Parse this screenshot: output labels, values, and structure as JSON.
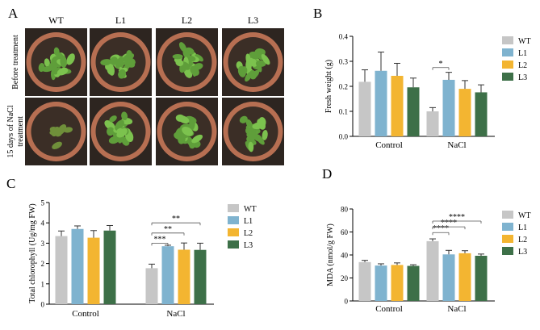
{
  "colors": {
    "WT": "#c6c6c6",
    "L1": "#7fb3cf",
    "L2": "#f3b531",
    "L3": "#3d7048",
    "axis": "#000000",
    "pot_rim": "#b76f52",
    "soil": "#3b2e26",
    "leaf": "#5f9e3a"
  },
  "panel_a": {
    "letter": "A",
    "columns": [
      "WT",
      "L1",
      "L2",
      "L3"
    ],
    "rows": [
      "Before treatment",
      "15 days of NaCl treatment"
    ],
    "row_label_lines": [
      [
        "Before treatment"
      ],
      [
        "15 days of NaCl",
        "treatment"
      ]
    ]
  },
  "chart_data": [
    {
      "panel": "B",
      "type": "bar",
      "ylabel": "Fresh weight (g)",
      "xlabel": "",
      "ylim": [
        0,
        0.4
      ],
      "yticks": [
        "0.0",
        "0.1",
        "0.2",
        "0.3",
        "0.4"
      ],
      "categories": [
        "Control",
        "NaCl"
      ],
      "legend_position": "right",
      "series": [
        {
          "name": "WT",
          "values": [
            0.218,
            0.1
          ],
          "errors": [
            0.048,
            0.015
          ]
        },
        {
          "name": "L1",
          "values": [
            0.262,
            0.226
          ],
          "errors": [
            0.075,
            0.03
          ]
        },
        {
          "name": "L2",
          "values": [
            0.242,
            0.19
          ],
          "errors": [
            0.05,
            0.033
          ]
        },
        {
          "name": "L3",
          "values": [
            0.196,
            0.176
          ],
          "errors": [
            0.037,
            0.03
          ]
        }
      ],
      "significance": [
        {
          "category": 1,
          "from": "WT",
          "to": "L1",
          "label": "*",
          "y": 0.275
        }
      ]
    },
    {
      "panel": "C",
      "type": "bar",
      "ylabel": "Total chlorophyll (Ug/mg FW)",
      "xlabel": "",
      "ylim": [
        0,
        5
      ],
      "yticks": [
        "0",
        "1",
        "2",
        "3",
        "4",
        "5"
      ],
      "categories": [
        "Control",
        "NaCl"
      ],
      "legend_position": "right",
      "series": [
        {
          "name": "WT",
          "values": [
            3.35,
            1.77
          ],
          "errors": [
            0.25,
            0.2
          ]
        },
        {
          "name": "L1",
          "values": [
            3.7,
            2.85
          ],
          "errors": [
            0.15,
            0.05
          ]
        },
        {
          "name": "L2",
          "values": [
            3.27,
            2.68
          ],
          "errors": [
            0.35,
            0.33
          ]
        },
        {
          "name": "L3",
          "values": [
            3.62,
            2.67
          ],
          "errors": [
            0.25,
            0.33
          ]
        }
      ],
      "significance": [
        {
          "category": 1,
          "from": "WT",
          "to": "L1",
          "label": "***",
          "y": 3.0
        },
        {
          "category": 1,
          "from": "WT",
          "to": "L2",
          "label": "**",
          "y": 3.5
        },
        {
          "category": 1,
          "from": "WT",
          "to": "L3",
          "label": "**",
          "y": 4.0
        }
      ]
    },
    {
      "panel": "D",
      "type": "bar",
      "ylabel": "MDA (nmol/g FW)",
      "xlabel": "",
      "ylim": [
        0,
        80
      ],
      "yticks": [
        "0",
        "20",
        "40",
        "60",
        "80"
      ],
      "categories": [
        "Control",
        "NaCl"
      ],
      "legend_position": "right",
      "series": [
        {
          "name": "WT",
          "values": [
            33.8,
            52.0
          ],
          "errors": [
            1.5,
            2.0
          ]
        },
        {
          "name": "L1",
          "values": [
            30.8,
            40.5
          ],
          "errors": [
            1.5,
            3.5
          ]
        },
        {
          "name": "L2",
          "values": [
            31.3,
            41.5
          ],
          "errors": [
            1.8,
            2.2
          ]
        },
        {
          "name": "L3",
          "values": [
            30.5,
            39.3
          ],
          "errors": [
            1.0,
            1.5
          ]
        }
      ],
      "significance": [
        {
          "category": 1,
          "from": "WT",
          "to": "L1",
          "label": "****",
          "y": 59.5
        },
        {
          "category": 1,
          "from": "WT",
          "to": "L2",
          "label": "****",
          "y": 64.5
        },
        {
          "category": 1,
          "from": "WT",
          "to": "L3",
          "label": "****",
          "y": 69.5
        }
      ]
    }
  ]
}
